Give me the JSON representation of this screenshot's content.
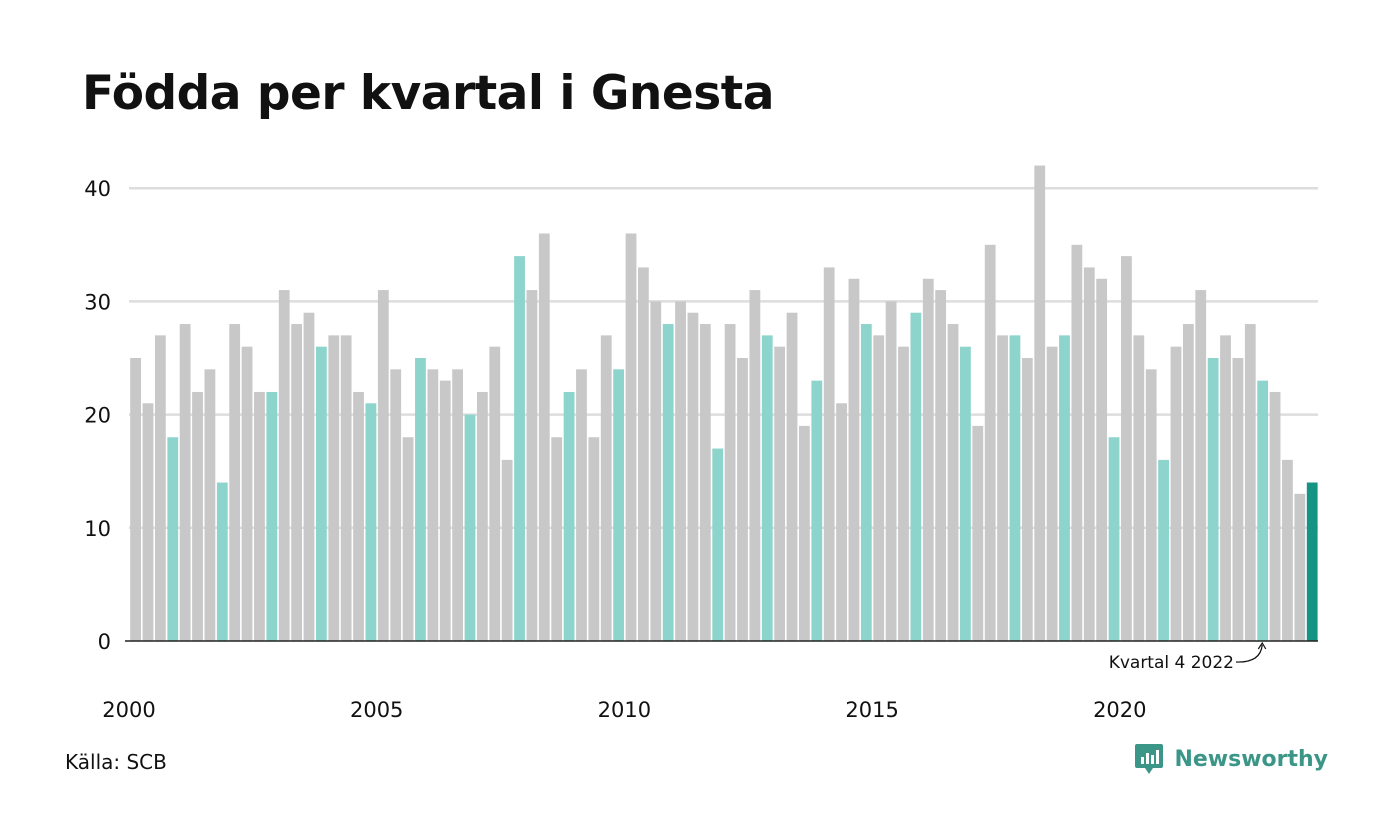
{
  "chart_data": {
    "type": "bar",
    "title": "Födda per kvartal i Gnesta",
    "xlabel": "",
    "ylabel": "",
    "ylim": [
      0,
      43
    ],
    "yticks": [
      0,
      10,
      20,
      30,
      40
    ],
    "x_tick_labels": [
      "2000",
      "2005",
      "2010",
      "2015",
      "2020"
    ],
    "grid": true,
    "start_year": 2000,
    "values": [
      25,
      21,
      27,
      18,
      28,
      22,
      24,
      14,
      28,
      26,
      22,
      22,
      31,
      28,
      29,
      26,
      27,
      27,
      22,
      21,
      31,
      24,
      18,
      25,
      24,
      23,
      24,
      20,
      22,
      26,
      16,
      34,
      31,
      36,
      18,
      22,
      24,
      18,
      27,
      24,
      36,
      33,
      30,
      28,
      30,
      29,
      28,
      17,
      28,
      25,
      31,
      27,
      26,
      29,
      19,
      23,
      33,
      21,
      32,
      28,
      27,
      30,
      26,
      29,
      32,
      31,
      28,
      26,
      19,
      35,
      27,
      27,
      25,
      42,
      26,
      27,
      35,
      33,
      32,
      18,
      34,
      27,
      24,
      16,
      26,
      28,
      31,
      25,
      27,
      25,
      28,
      23,
      22,
      16,
      13,
      14
    ],
    "highlight_quarter": 4,
    "colors": {
      "other_quarters": "#c8c8c8",
      "highlight_quarter": "#8dd4cc",
      "latest": "#159383",
      "grid": "#dddddd",
      "axis": "#222222"
    },
    "annotation": "Kvartal 4 2022"
  },
  "source": "Källa: SCB",
  "brand": {
    "name": "Newsworthy",
    "icon": "newsworthy-logo-icon",
    "color": "#3b9688"
  }
}
